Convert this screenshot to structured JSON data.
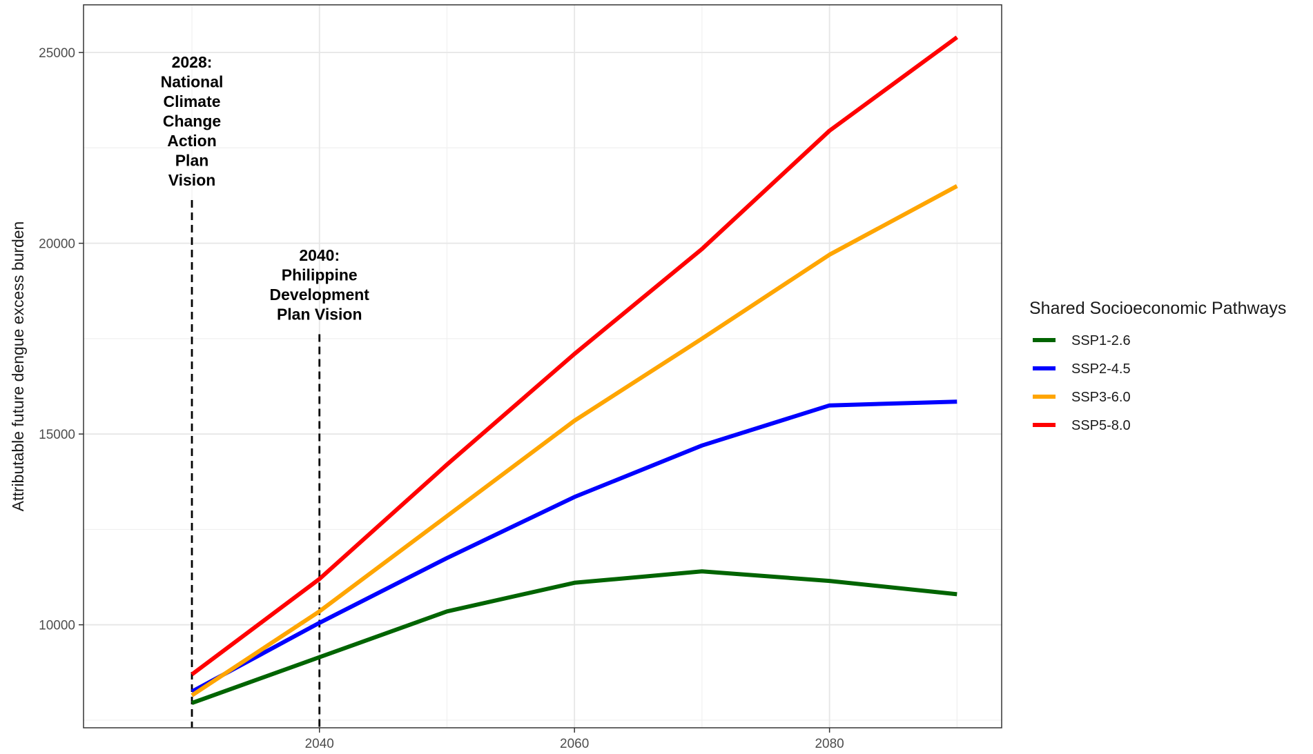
{
  "chart_data": {
    "type": "line",
    "title": "",
    "xlabel": "",
    "ylabel": "Attributable future dengue excess burden",
    "xlim": [
      2021.5,
      2093.5
    ],
    "ylim": [
      7300,
      26250
    ],
    "x_ticks": [
      2040,
      2060,
      2080
    ],
    "x_tick_labels": [
      "2040",
      "2060",
      "2080"
    ],
    "y_ticks": [
      10000,
      15000,
      20000,
      25000
    ],
    "y_tick_labels": [
      "10000",
      "15000",
      "20000",
      "25000"
    ],
    "x_minor_ticks": [
      2030,
      2050,
      2070,
      2090
    ],
    "y_minor_ticks": [
      7500,
      12500,
      17500,
      22500
    ],
    "grid": true,
    "legend": {
      "title": "Shared Socioeconomic Pathways",
      "placement": "right"
    },
    "x": [
      2030,
      2040,
      2050,
      2060,
      2070,
      2080,
      2090
    ],
    "series": [
      {
        "name": "SSP1-2.6",
        "color": "#006400",
        "values": [
          7950,
          9150,
          10350,
          11100,
          11400,
          11150,
          10800
        ]
      },
      {
        "name": "SSP2-4.5",
        "color": "#0000FF",
        "values": [
          8250,
          10050,
          11750,
          13350,
          14700,
          15750,
          15850
        ]
      },
      {
        "name": "SSP3-6.0",
        "color": "#FFA500",
        "values": [
          8150,
          10350,
          12850,
          15350,
          17500,
          19700,
          21500
        ]
      },
      {
        "name": "SSP5-8.0",
        "color": "#FF0000",
        "values": [
          8700,
          11200,
          14200,
          17100,
          19850,
          22950,
          25400
        ]
      }
    ],
    "annotations": [
      {
        "x": 2030,
        "lines": [
          "2028:",
          "National",
          "Climate",
          "Change",
          "Action",
          "Plan",
          "Vision"
        ]
      },
      {
        "x": 2040,
        "lines": [
          "2040:",
          "Philippine",
          "Development",
          "Plan Vision"
        ]
      }
    ]
  }
}
